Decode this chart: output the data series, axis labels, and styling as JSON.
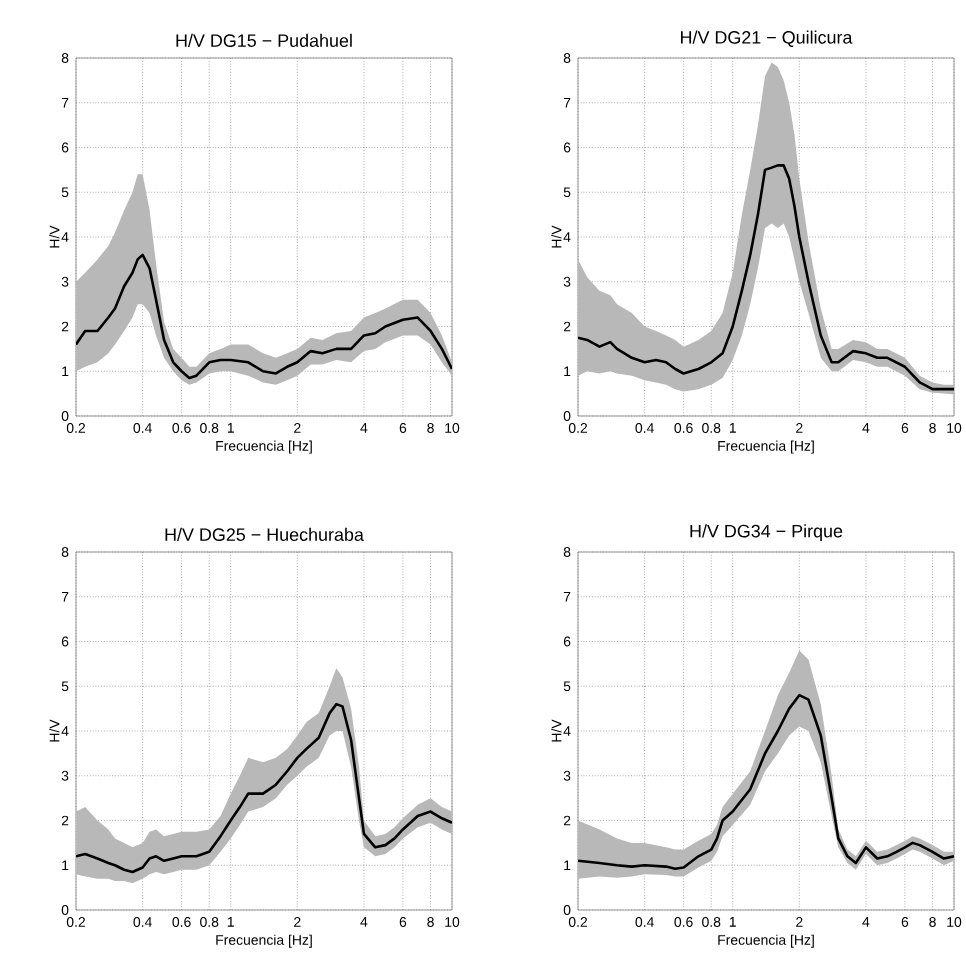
{
  "chart_data": [
    {
      "type": "line",
      "title": "H/V DG15 − Pudahuel",
      "xlabel": "Frecuencia [Hz]",
      "ylabel": "H/V",
      "log": "x",
      "grid": true,
      "xlim": [
        0.2,
        10
      ],
      "ylim": [
        0,
        8
      ],
      "xticks": [
        0.2,
        0.4,
        0.6,
        0.8,
        1,
        2,
        4,
        6,
        8,
        10
      ],
      "yticks": [
        0,
        1,
        2,
        3,
        4,
        5,
        6,
        7,
        8
      ],
      "x": [
        0.2,
        0.22,
        0.25,
        0.28,
        0.3,
        0.33,
        0.36,
        0.38,
        0.4,
        0.43,
        0.46,
        0.5,
        0.55,
        0.6,
        0.65,
        0.7,
        0.8,
        0.9,
        1,
        1.2,
        1.4,
        1.6,
        1.8,
        2,
        2.3,
        2.6,
        3,
        3.5,
        4,
        4.5,
        5,
        6,
        7,
        8,
        9,
        10
      ],
      "series": [
        {
          "color": "#000000",
          "values": [
            1.6,
            1.9,
            1.9,
            2.2,
            2.4,
            2.9,
            3.2,
            3.5,
            3.6,
            3.3,
            2.6,
            1.7,
            1.2,
            1.0,
            0.85,
            0.9,
            1.2,
            1.25,
            1.25,
            1.2,
            1.0,
            0.95,
            1.1,
            1.2,
            1.45,
            1.4,
            1.5,
            1.5,
            1.8,
            1.85,
            2.0,
            2.15,
            2.2,
            1.9,
            1.5,
            1.05
          ],
          "upper": [
            3.0,
            3.2,
            3.5,
            3.8,
            4.1,
            4.6,
            5.0,
            5.4,
            5.4,
            4.6,
            3.4,
            2.1,
            1.5,
            1.3,
            1.1,
            1.1,
            1.4,
            1.5,
            1.6,
            1.6,
            1.4,
            1.3,
            1.4,
            1.5,
            1.75,
            1.7,
            1.85,
            1.9,
            2.2,
            2.3,
            2.4,
            2.6,
            2.6,
            2.3,
            1.8,
            1.2
          ],
          "lower": [
            1.0,
            1.1,
            1.2,
            1.4,
            1.6,
            1.9,
            2.2,
            2.5,
            2.5,
            2.3,
            1.8,
            1.3,
            1.0,
            0.8,
            0.7,
            0.75,
            0.95,
            1.0,
            1.0,
            0.9,
            0.75,
            0.7,
            0.8,
            0.9,
            1.15,
            1.15,
            1.25,
            1.2,
            1.45,
            1.5,
            1.65,
            1.8,
            1.8,
            1.6,
            1.2,
            0.9
          ]
        }
      ]
    },
    {
      "type": "line",
      "title": "H/V DG21 − Quilicura",
      "xlabel": "Frecuencia [Hz]",
      "ylabel": "H/V",
      "log": "x",
      "grid": true,
      "xlim": [
        0.2,
        10
      ],
      "ylim": [
        0,
        8
      ],
      "xticks": [
        0.2,
        0.4,
        0.6,
        0.8,
        1,
        2,
        4,
        6,
        8,
        10
      ],
      "yticks": [
        0,
        1,
        2,
        3,
        4,
        5,
        6,
        7,
        8
      ],
      "x": [
        0.2,
        0.22,
        0.25,
        0.28,
        0.3,
        0.35,
        0.4,
        0.45,
        0.5,
        0.55,
        0.6,
        0.7,
        0.8,
        0.9,
        1,
        1.1,
        1.2,
        1.3,
        1.4,
        1.5,
        1.6,
        1.7,
        1.8,
        1.9,
        2,
        2.2,
        2.5,
        2.8,
        3,
        3.5,
        4,
        4.5,
        5,
        6,
        7,
        8,
        9,
        10
      ],
      "series": [
        {
          "color": "#000000",
          "values": [
            1.75,
            1.7,
            1.55,
            1.65,
            1.5,
            1.3,
            1.2,
            1.25,
            1.2,
            1.05,
            0.95,
            1.05,
            1.2,
            1.4,
            2.0,
            2.8,
            3.6,
            4.5,
            5.5,
            5.55,
            5.6,
            5.6,
            5.3,
            4.7,
            4.0,
            3.0,
            1.8,
            1.2,
            1.2,
            1.45,
            1.4,
            1.3,
            1.3,
            1.1,
            0.75,
            0.6,
            0.6,
            0.6
          ],
          "upper": [
            3.5,
            3.1,
            2.8,
            2.7,
            2.5,
            2.3,
            2.0,
            1.9,
            1.8,
            1.7,
            1.55,
            1.7,
            1.9,
            2.3,
            3.2,
            4.5,
            5.5,
            6.5,
            7.6,
            7.9,
            7.8,
            7.5,
            7.0,
            6.3,
            5.3,
            3.9,
            2.4,
            1.5,
            1.5,
            1.7,
            1.65,
            1.5,
            1.5,
            1.3,
            0.9,
            0.75,
            0.7,
            0.7
          ],
          "lower": [
            0.9,
            1.0,
            0.95,
            1.0,
            0.95,
            0.9,
            0.8,
            0.75,
            0.7,
            0.6,
            0.55,
            0.6,
            0.7,
            0.85,
            1.25,
            1.8,
            2.5,
            3.3,
            4.2,
            4.3,
            4.2,
            4.3,
            4.0,
            3.5,
            3.0,
            2.3,
            1.3,
            1.0,
            1.0,
            1.25,
            1.2,
            1.1,
            1.1,
            0.9,
            0.6,
            0.52,
            0.5,
            0.48
          ]
        }
      ]
    },
    {
      "type": "line",
      "title": "H/V DG25 − Huechuraba",
      "xlabel": "Frecuencia [Hz]",
      "ylabel": "H/V",
      "log": "x",
      "grid": true,
      "xlim": [
        0.2,
        10
      ],
      "ylim": [
        0,
        8
      ],
      "xticks": [
        0.2,
        0.4,
        0.6,
        0.8,
        1,
        2,
        4,
        6,
        8,
        10
      ],
      "yticks": [
        0,
        1,
        2,
        3,
        4,
        5,
        6,
        7,
        8
      ],
      "x": [
        0.2,
        0.22,
        0.25,
        0.28,
        0.3,
        0.33,
        0.36,
        0.4,
        0.43,
        0.46,
        0.5,
        0.55,
        0.6,
        0.7,
        0.8,
        0.9,
        1,
        1.1,
        1.2,
        1.4,
        1.6,
        1.8,
        2,
        2.2,
        2.5,
        2.8,
        3,
        3.2,
        3.5,
        3.8,
        4,
        4.5,
        5,
        5.5,
        6,
        7,
        8,
        9,
        10
      ],
      "series": [
        {
          "color": "#000000",
          "values": [
            1.2,
            1.25,
            1.15,
            1.05,
            1.0,
            0.9,
            0.85,
            0.95,
            1.15,
            1.2,
            1.1,
            1.15,
            1.2,
            1.2,
            1.3,
            1.65,
            2.0,
            2.3,
            2.6,
            2.6,
            2.8,
            3.1,
            3.4,
            3.6,
            3.85,
            4.4,
            4.6,
            4.55,
            3.8,
            2.5,
            1.7,
            1.4,
            1.45,
            1.6,
            1.8,
            2.1,
            2.2,
            2.05,
            1.95
          ],
          "upper": [
            2.2,
            2.3,
            2.0,
            1.8,
            1.6,
            1.5,
            1.4,
            1.5,
            1.75,
            1.8,
            1.65,
            1.7,
            1.75,
            1.75,
            1.8,
            2.1,
            2.6,
            3.0,
            3.4,
            3.3,
            3.4,
            3.6,
            3.9,
            4.2,
            4.4,
            5.0,
            5.4,
            5.2,
            4.5,
            3.2,
            2.0,
            1.65,
            1.7,
            1.85,
            2.05,
            2.35,
            2.5,
            2.3,
            2.2
          ],
          "lower": [
            0.8,
            0.75,
            0.7,
            0.7,
            0.65,
            0.65,
            0.6,
            0.7,
            0.8,
            0.85,
            0.8,
            0.85,
            0.9,
            0.9,
            1.0,
            1.3,
            1.6,
            1.9,
            2.2,
            2.3,
            2.5,
            2.8,
            3.0,
            3.2,
            3.4,
            3.9,
            4.0,
            4.0,
            3.2,
            2.0,
            1.4,
            1.2,
            1.25,
            1.4,
            1.6,
            1.85,
            1.95,
            1.8,
            1.7
          ]
        }
      ]
    },
    {
      "type": "line",
      "title": "H/V DG34 − Pirque",
      "xlabel": "Frecuencia [Hz]",
      "ylabel": "H/V",
      "log": "x",
      "grid": true,
      "xlim": [
        0.2,
        10
      ],
      "ylim": [
        0,
        8
      ],
      "xticks": [
        0.2,
        0.4,
        0.6,
        0.8,
        1,
        2,
        4,
        6,
        8,
        10
      ],
      "yticks": [
        0,
        1,
        2,
        3,
        4,
        5,
        6,
        7,
        8
      ],
      "x": [
        0.2,
        0.25,
        0.3,
        0.35,
        0.4,
        0.5,
        0.55,
        0.6,
        0.7,
        0.8,
        0.85,
        0.9,
        1,
        1.2,
        1.4,
        1.6,
        1.8,
        2,
        2.2,
        2.5,
        2.8,
        3,
        3.3,
        3.6,
        4,
        4.5,
        5,
        5.5,
        6,
        6.5,
        7,
        8,
        9,
        10
      ],
      "series": [
        {
          "color": "#000000",
          "values": [
            1.1,
            1.05,
            1.0,
            0.97,
            1.0,
            0.97,
            0.92,
            0.95,
            1.2,
            1.35,
            1.6,
            2.0,
            2.2,
            2.7,
            3.5,
            4.0,
            4.5,
            4.8,
            4.7,
            3.9,
            2.5,
            1.6,
            1.2,
            1.05,
            1.4,
            1.15,
            1.2,
            1.3,
            1.4,
            1.5,
            1.45,
            1.3,
            1.15,
            1.2
          ],
          "upper": [
            2.0,
            1.8,
            1.6,
            1.5,
            1.5,
            1.4,
            1.35,
            1.35,
            1.55,
            1.7,
            1.9,
            2.3,
            2.6,
            3.1,
            4.0,
            4.8,
            5.3,
            5.8,
            5.6,
            4.6,
            3.0,
            1.8,
            1.35,
            1.2,
            1.55,
            1.3,
            1.35,
            1.45,
            1.55,
            1.65,
            1.6,
            1.45,
            1.3,
            1.3
          ],
          "lower": [
            0.7,
            0.75,
            0.72,
            0.75,
            0.8,
            0.78,
            0.75,
            0.75,
            0.95,
            1.1,
            1.3,
            1.65,
            1.9,
            2.35,
            3.1,
            3.5,
            3.9,
            4.1,
            4.0,
            3.3,
            2.1,
            1.4,
            1.05,
            0.9,
            1.25,
            1.0,
            1.05,
            1.15,
            1.25,
            1.35,
            1.3,
            1.15,
            1.0,
            1.1
          ]
        }
      ]
    }
  ]
}
